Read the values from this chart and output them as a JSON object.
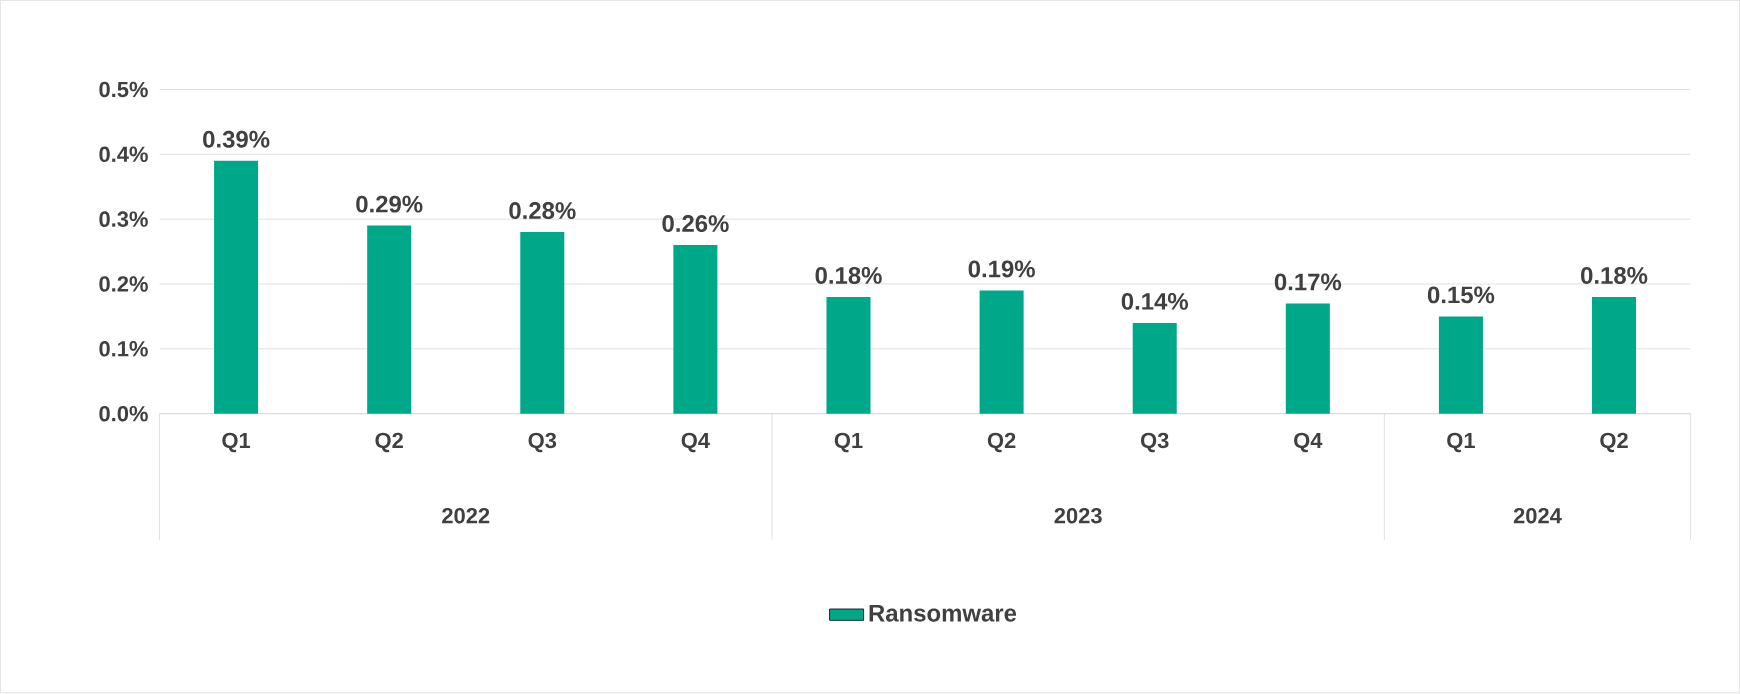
{
  "chart_data": {
    "type": "bar",
    "categories": [
      "Q1",
      "Q2",
      "Q3",
      "Q4",
      "Q1",
      "Q2",
      "Q3",
      "Q4",
      "Q1",
      "Q2"
    ],
    "series": [
      {
        "name": "Ransomware",
        "color": "#00a88a",
        "values": [
          0.39,
          0.29,
          0.28,
          0.26,
          0.18,
          0.19,
          0.14,
          0.17,
          0.15,
          0.18
        ],
        "value_labels": [
          "0.39%",
          "0.29%",
          "0.28%",
          "0.26%",
          "0.18%",
          "0.19%",
          "0.14%",
          "0.17%",
          "0.15%",
          "0.18%"
        ]
      }
    ],
    "annotations": [
      "2022",
      "2023",
      "2024"
    ],
    "ylim": [
      0,
      0.5
    ],
    "yticks": [
      {
        "value": 0,
        "label": "0.0%"
      },
      {
        "value": 0.1,
        "label": "0.1%"
      },
      {
        "value": 0.2,
        "label": "0.2%"
      },
      {
        "value": 0.3,
        "label": "0.3%"
      },
      {
        "value": 0.4,
        "label": "0.4%"
      },
      {
        "value": 0.5,
        "label": "0.5%"
      }
    ],
    "grid": "y",
    "legend": "bottom"
  }
}
